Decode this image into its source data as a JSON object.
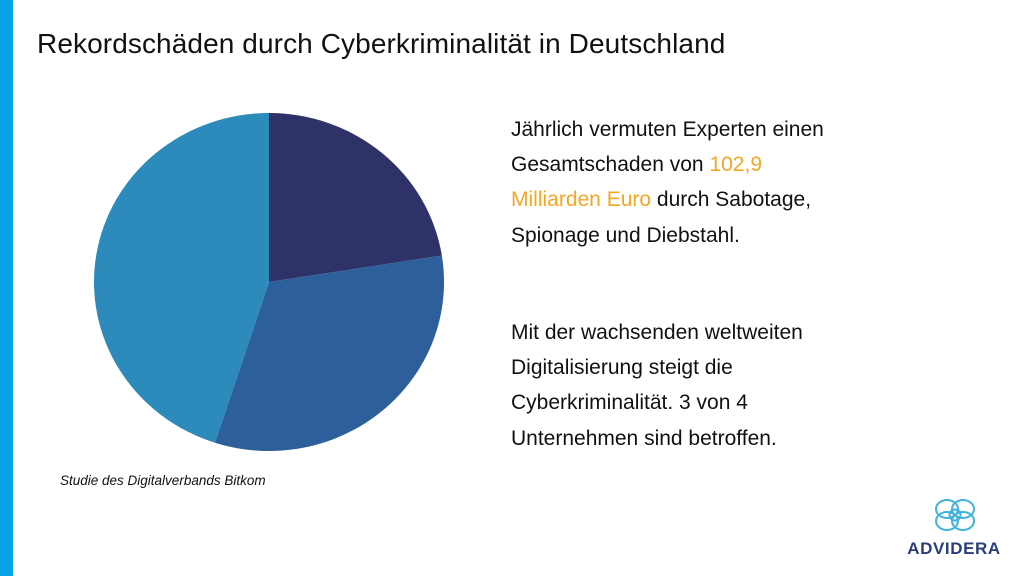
{
  "slide": {
    "title": "Rekordschäden durch Cyberkriminalität in Deutschland",
    "source": "Studie des Digitalverbands Bitkom"
  },
  "body": {
    "para1_before": "Jährlich vermuten Experten einen Gesamtschaden von",
    "para1_highlight": "102,9 Milliarden Euro",
    "para1_after": "durch Sabotage, Spionage und Diebstahl.",
    "para2": "Mit der wachsenden weltweiten Digitalisierung steigt die Cyberkriminalität. 3 von 4 Unternehmen sind betroffen."
  },
  "logo": {
    "name": "ADVIDERA",
    "icon": "advidera-logo-icon"
  },
  "colors": {
    "accent_bar": "#0aa2e6",
    "highlight_text": "#f5a623",
    "logo_mark": "#3fb3dc",
    "logo_text": "#2b3d7a",
    "slice_1": "#2e3269",
    "slice_2": "#2d5f9a",
    "slice_3": "#2d8bbb"
  },
  "chart_data": {
    "type": "pie",
    "title": "",
    "values": [
      0.225,
      0.325,
      0.45
    ],
    "slice_colors": [
      "#2e3269",
      "#2d5f9a",
      "#2d8bbb"
    ],
    "start": "12 o'clock",
    "direction": "clockwise",
    "legend": "none",
    "data_labels": "none"
  }
}
